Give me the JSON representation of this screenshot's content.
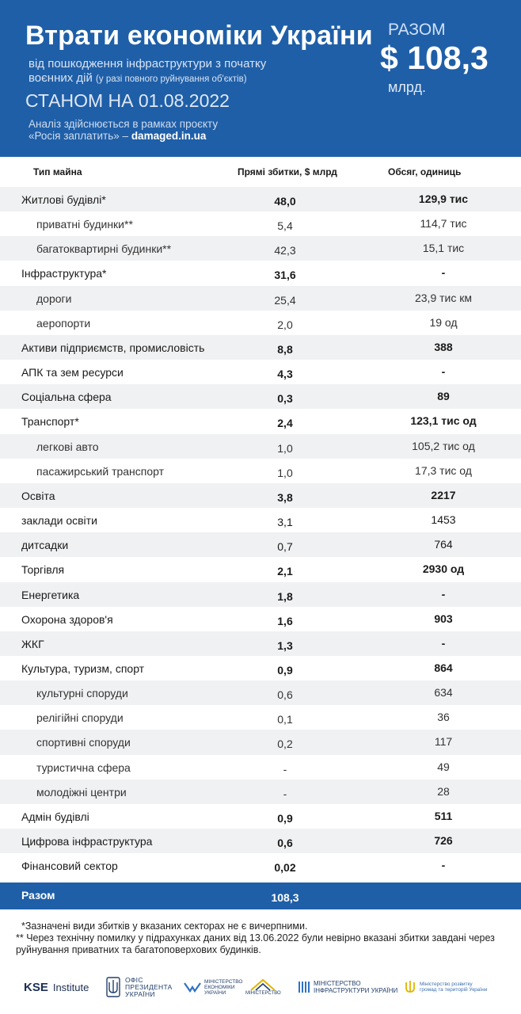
{
  "header": {
    "title": "Втрати економіки України",
    "subtitle_line1": "від пошкодження інфраструктури з початку",
    "subtitle_line2": "воєнних дій",
    "subtitle_note": "(у разі повного руйнування об'єктів)",
    "date": "СТАНОМ НА 01.08.2022",
    "project_line1": "Аналіз здійснюється в рамках проєкту",
    "project_line2": "«Росія заплатить» –",
    "project_link": "damaged.in.ua",
    "total_label": "РАЗОМ",
    "total_value": "$ 108,3",
    "total_unit": "млрд."
  },
  "table": {
    "columns": [
      "Тип майна",
      "Прямі збитки, $ млрд",
      "Обсяг, одиниць"
    ],
    "rows": [
      {
        "name": "Житлові будівлі*",
        "damage": "48,0",
        "volume": "129,9 тис",
        "level": "main",
        "shade": true
      },
      {
        "name": "приватні будинки**",
        "damage": "5,4",
        "volume": "114,7 тис",
        "level": "sub",
        "shade": false
      },
      {
        "name": "багатоквартирні будинки**",
        "damage": "42,3",
        "volume": "15,1 тис",
        "level": "sub",
        "shade": true
      },
      {
        "name": "Інфраструктура*",
        "damage": "31,6",
        "volume": "-",
        "level": "main",
        "shade": false
      },
      {
        "name": "дороги",
        "damage": "25,4",
        "volume": "23,9 тис км",
        "level": "sub",
        "shade": true
      },
      {
        "name": "аеропорти",
        "damage": "2,0",
        "volume": "19 од",
        "level": "sub",
        "shade": false
      },
      {
        "name": "Активи підприємств, промисловість",
        "damage": "8,8",
        "volume": "388",
        "level": "main",
        "shade": true
      },
      {
        "name": "АПК та зем ресурси",
        "damage": "4,3",
        "volume": "-",
        "level": "main",
        "shade": false
      },
      {
        "name": "Соціальна сфера",
        "damage": "0,3",
        "volume": "89",
        "level": "main",
        "shade": true
      },
      {
        "name": "Транспорт*",
        "damage": "2,4",
        "volume": "123,1 тис од",
        "level": "main",
        "shade": false
      },
      {
        "name": "легкові авто",
        "damage": "1,0",
        "volume": "105,2 тис од",
        "level": "sub",
        "shade": true
      },
      {
        "name": "пасажирський транспорт",
        "damage": "1,0",
        "volume": "17,3 тис од",
        "level": "sub",
        "shade": false
      },
      {
        "name": "Освіта",
        "damage": "3,8",
        "volume": "2217",
        "level": "main",
        "shade": true
      },
      {
        "name": "заклади освіти",
        "damage": "3,1",
        "volume": "1453",
        "level": "plain",
        "shade": false
      },
      {
        "name": "дитсадки",
        "damage": "0,7",
        "volume": "764",
        "level": "plain",
        "shade": true
      },
      {
        "name": "Торгівля",
        "damage": "2,1",
        "volume": "2930 од",
        "level": "main",
        "shade": false
      },
      {
        "name": "Енергетика",
        "damage": "1,8",
        "volume": "-",
        "level": "main",
        "shade": true
      },
      {
        "name": "Охорона здоров'я",
        "damage": "1,6",
        "volume": "903",
        "level": "main",
        "shade": false
      },
      {
        "name": "ЖКГ",
        "damage": "1,3",
        "volume": "-",
        "level": "main",
        "shade": true
      },
      {
        "name": "Культура, туризм, спорт",
        "damage": "0,9",
        "volume": "864",
        "level": "main",
        "shade": false
      },
      {
        "name": "культурні споруди",
        "damage": "0,6",
        "volume": "634",
        "level": "sub",
        "shade": true
      },
      {
        "name": "релігійні споруди",
        "damage": "0,1",
        "volume": "36",
        "level": "sub",
        "shade": false
      },
      {
        "name": "спортивні споруди",
        "damage": "0,2",
        "volume": "117",
        "level": "sub",
        "shade": true
      },
      {
        "name": "туристична сфера",
        "damage": "-",
        "volume": "49",
        "level": "sub",
        "shade": false
      },
      {
        "name": "молодіжні центри",
        "damage": "-",
        "volume": "28",
        "level": "sub",
        "shade": true
      },
      {
        "name": "Адмін будівлі",
        "damage": "0,9",
        "volume": "511",
        "level": "main",
        "shade": false
      },
      {
        "name": "Цифрова інфраструктура",
        "damage": "0,6",
        "volume": "726",
        "level": "main",
        "shade": true
      },
      {
        "name": "Фінансовий сектор",
        "damage": "0,02",
        "volume": "-",
        "level": "main",
        "shade": false
      }
    ],
    "total": {
      "label": "Разом",
      "value": "108,3"
    }
  },
  "footnotes": {
    "note1": "*Зазначені види збитків у вказаних секторах не є вичерпними.",
    "note2": "** Через технічну помилку у підрахунках даних від 13.06.2022 були невірно вказані збитки завдані через руйнування приватних та багатоповерхових будинків."
  },
  "logos": {
    "kse": "KSE",
    "kse_institute": "Institute",
    "op_line1": "ОФІС",
    "op_line2": "ПРЕЗИДЕНТА",
    "op_line3": "УКРАЇНИ",
    "me_line1": "МІНІСТЕРСТВО",
    "me_line2": "ЕКОНОМІКИ",
    "me_line3": "УКРАЇНИ",
    "ms_line1": "МІНІСТЕРСТВО",
    "mi_line1": "МІНІСТЕРСТВО",
    "mi_line2": "ІНФРАСТРУКТУРИ УКРАЇНИ",
    "mr_line1": "Міністерство розвитку",
    "mr_line2": "громад та територій України"
  },
  "colors": {
    "primary_blue": "#1f5fa8",
    "row_shade": "#f0f1f3"
  }
}
